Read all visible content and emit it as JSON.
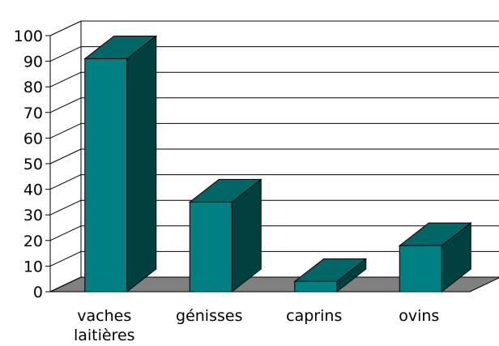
{
  "chart_data": {
    "type": "bar",
    "categories": [
      [
        "vaches",
        "laitières"
      ],
      [
        "génisses"
      ],
      [
        "caprins"
      ],
      [
        "ovins"
      ]
    ],
    "values": [
      91,
      35,
      4,
      18
    ],
    "title": "",
    "xlabel": "",
    "ylabel": "",
    "ylim": [
      0,
      100
    ],
    "yticks": [
      "0",
      "10",
      "20",
      "30",
      "40",
      "50",
      "60",
      "70",
      "80",
      "90",
      "100"
    ],
    "grid": true,
    "legend": "none",
    "three_d": true,
    "colors": {
      "bar_front": "#008080",
      "bar_top": "#006666",
      "bar_side": "#00403f",
      "floor": "#808080",
      "gridline": "#000000",
      "axis": "#000000"
    }
  }
}
